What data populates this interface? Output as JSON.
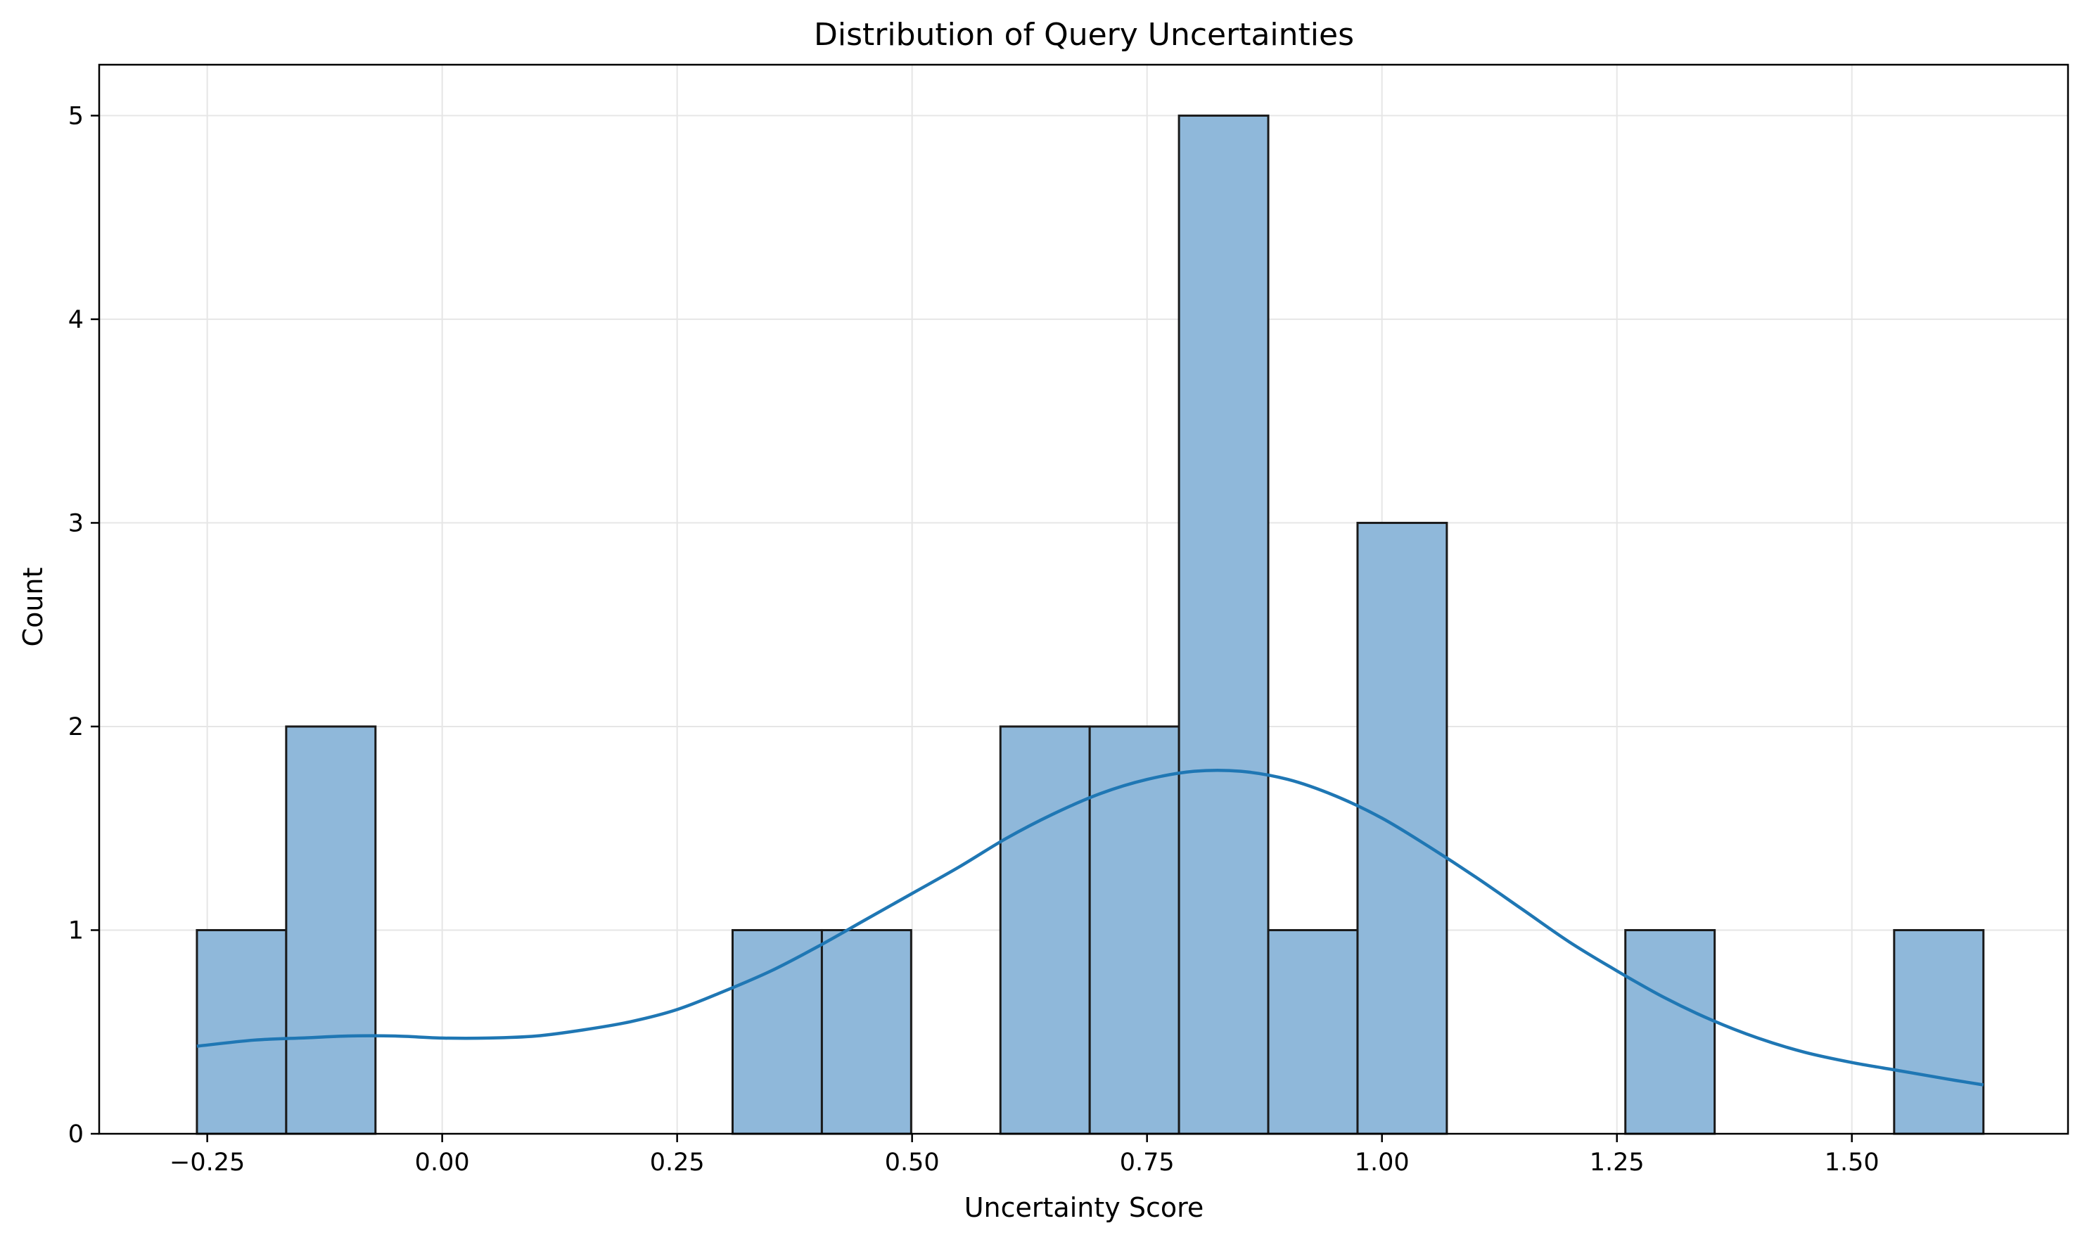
{
  "chart_data": {
    "type": "bar",
    "subtype": "histogram_with_kde",
    "title": "Distribution of Query Uncertainties",
    "xlabel": "Uncertainty Score",
    "ylabel": "Count",
    "xlim": [
      -0.365,
      1.73
    ],
    "ylim": [
      0,
      5.25
    ],
    "xticks": [
      {
        "value": -0.25,
        "label": "−0.25"
      },
      {
        "value": 0.0,
        "label": "0.00"
      },
      {
        "value": 0.25,
        "label": "0.25"
      },
      {
        "value": 0.5,
        "label": "0.50"
      },
      {
        "value": 0.75,
        "label": "0.75"
      },
      {
        "value": 1.0,
        "label": "1.00"
      },
      {
        "value": 1.25,
        "label": "1.25"
      },
      {
        "value": 1.5,
        "label": "1.50"
      }
    ],
    "yticks": [
      {
        "value": 0,
        "label": "0"
      },
      {
        "value": 1,
        "label": "1"
      },
      {
        "value": 2,
        "label": "2"
      },
      {
        "value": 3,
        "label": "3"
      },
      {
        "value": 4,
        "label": "4"
      },
      {
        "value": 5,
        "label": "5"
      }
    ],
    "bins": [
      {
        "x0": -0.261,
        "x1": -0.166,
        "count": 1
      },
      {
        "x0": -0.166,
        "x1": -0.071,
        "count": 2
      },
      {
        "x0": 0.309,
        "x1": 0.404,
        "count": 1
      },
      {
        "x0": 0.404,
        "x1": 0.499,
        "count": 1
      },
      {
        "x0": 0.594,
        "x1": 0.689,
        "count": 2
      },
      {
        "x0": 0.689,
        "x1": 0.784,
        "count": 2
      },
      {
        "x0": 0.784,
        "x1": 0.879,
        "count": 5
      },
      {
        "x0": 0.879,
        "x1": 0.974,
        "count": 1
      },
      {
        "x0": 0.974,
        "x1": 1.069,
        "count": 3
      },
      {
        "x0": 1.259,
        "x1": 1.354,
        "count": 1
      },
      {
        "x0": 1.545,
        "x1": 1.64,
        "count": 1
      }
    ],
    "kde": {
      "x": [
        -0.261,
        -0.2,
        -0.15,
        -0.1,
        -0.05,
        0.0,
        0.05,
        0.1,
        0.15,
        0.2,
        0.25,
        0.3,
        0.35,
        0.4,
        0.45,
        0.5,
        0.55,
        0.6,
        0.65,
        0.7,
        0.75,
        0.8,
        0.85,
        0.9,
        0.95,
        1.0,
        1.05,
        1.1,
        1.15,
        1.2,
        1.25,
        1.3,
        1.35,
        1.4,
        1.45,
        1.5,
        1.55,
        1.6,
        1.64
      ],
      "y": [
        0.43,
        0.46,
        0.47,
        0.48,
        0.48,
        0.47,
        0.47,
        0.48,
        0.51,
        0.55,
        0.61,
        0.7,
        0.8,
        0.92,
        1.05,
        1.18,
        1.31,
        1.45,
        1.57,
        1.67,
        1.74,
        1.78,
        1.78,
        1.74,
        1.66,
        1.55,
        1.41,
        1.26,
        1.1,
        0.94,
        0.8,
        0.67,
        0.56,
        0.47,
        0.4,
        0.35,
        0.31,
        0.27,
        0.24
      ]
    },
    "grid": true,
    "colors": {
      "bar_fill": "#8fb8da",
      "bar_edge": "#1a1a1a",
      "kde_line": "#1f77b4",
      "grid": "#e6e6e6",
      "axes": "#000000"
    }
  }
}
